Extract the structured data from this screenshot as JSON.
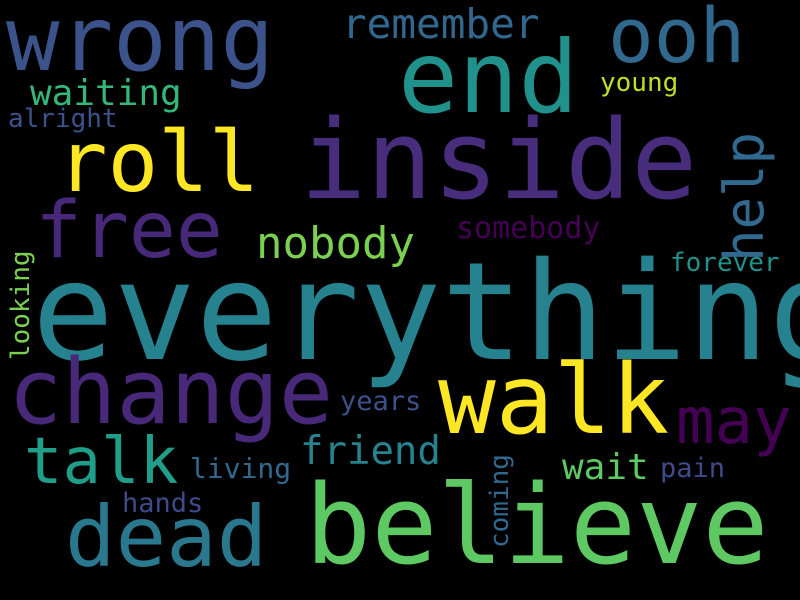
{
  "background_color": "#000000",
  "words": {
    "wrong": {
      "text": "wrong",
      "color": "#3b528b"
    },
    "end": {
      "text": "end",
      "color": "#21918c"
    },
    "ooh": {
      "text": "ooh",
      "color": "#31688e"
    },
    "remember": {
      "text": "remember",
      "color": "#31688e"
    },
    "waiting": {
      "text": "waiting",
      "color": "#35b779"
    },
    "young": {
      "text": "young",
      "color": "#bddf26"
    },
    "alright": {
      "text": "alright",
      "color": "#3b528b"
    },
    "roll": {
      "text": "roll",
      "color": "#fde725"
    },
    "inside": {
      "text": "inside",
      "color": "#472d7b"
    },
    "help": {
      "text": "help",
      "color": "#31688e"
    },
    "free": {
      "text": "free",
      "color": "#482878"
    },
    "nobody": {
      "text": "nobody",
      "color": "#7ad151"
    },
    "somebody": {
      "text": "somebody",
      "color": "#440154"
    },
    "forever": {
      "text": "forever",
      "color": "#21918c"
    },
    "everything": {
      "text": "everything",
      "color": "#26828e"
    },
    "looking": {
      "text": "looking",
      "color": "#7ad151"
    },
    "change": {
      "text": "change",
      "color": "#482878"
    },
    "walk": {
      "text": "walk",
      "color": "#fde725"
    },
    "may": {
      "text": "may",
      "color": "#440154"
    },
    "years": {
      "text": "years",
      "color": "#3b528b"
    },
    "talk": {
      "text": "talk",
      "color": "#1f9e89"
    },
    "friend": {
      "text": "friend",
      "color": "#26828e"
    },
    "living": {
      "text": "living",
      "color": "#31688e"
    },
    "wait": {
      "text": "wait",
      "color": "#5ec962"
    },
    "pain": {
      "text": "pain",
      "color": "#3e4a89"
    },
    "coming": {
      "text": "coming",
      "color": "#31688e"
    },
    "hands": {
      "text": "hands",
      "color": "#3e4a89"
    },
    "dead": {
      "text": "dead",
      "color": "#2a788e"
    },
    "believe": {
      "text": "believe",
      "color": "#5ec962"
    }
  }
}
